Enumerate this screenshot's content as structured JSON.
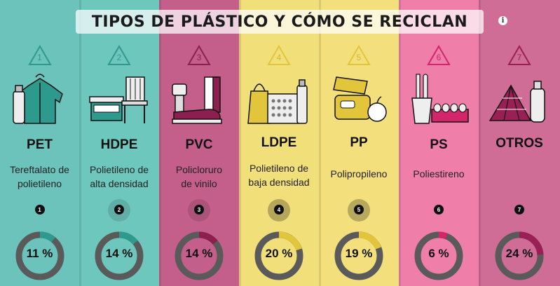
{
  "title": "TIPOS DE PLÁSTICO Y CÓMO SE RECICLAN",
  "info_icon": "info-icon",
  "ring_color": "#5a5a5a",
  "columns": [
    {
      "number": "1",
      "code": "PET",
      "name_line1": "Tereftalato de",
      "name_line2": "polietileno",
      "dot": "1",
      "percent_label": "11 %",
      "percent": 11,
      "bg": "#6cc3bb",
      "accent": "#2e9a8e",
      "icon": "jacket-bottle-icon"
    },
    {
      "number": "2",
      "code": "HDPE",
      "name_line1": "Polietileno de",
      "name_line2": "alta densidad",
      "dot": "2",
      "percent_label": "14 %",
      "percent": 14,
      "bg": "#6ec7bd",
      "accent": "#2e9a8e",
      "icon": "chair-table-icon"
    },
    {
      "number": "3",
      "code": "PVC",
      "name_line1": "Policloruro",
      "name_line2": "de vinilo",
      "dot": "3",
      "percent_label": "14 %",
      "percent": 14,
      "bg": "#c45f8b",
      "accent": "#8c1f50",
      "icon": "pipe-shoe-icon"
    },
    {
      "number": "4",
      "code": "LDPE",
      "name_line1": "Polietileno de",
      "name_line2": "baja densidad",
      "dot": "4",
      "percent_label": "20 %",
      "percent": 20,
      "bg": "#f1df7a",
      "accent": "#e2c53a",
      "icon": "bag-container-icon"
    },
    {
      "number": "5",
      "code": "PP",
      "name_line1": "Polipropileno",
      "name_line2": "",
      "dot": "5",
      "percent_label": "19 %",
      "percent": 19,
      "bg": "#f3e07d",
      "accent": "#e2c53a",
      "icon": "lunchbox-icon"
    },
    {
      "number": "6",
      "code": "PS",
      "name_line1": "Poliestireno",
      "name_line2": "",
      "dot": "6",
      "percent_label": "6 %",
      "percent": 6,
      "bg": "#ef7fa9",
      "accent": "#d4246a",
      "icon": "cutlery-eggcarton-icon"
    },
    {
      "number": "7",
      "code": "OTROS",
      "name_line1": "",
      "name_line2": "",
      "dot": "7",
      "percent_label": "24 %",
      "percent": 24,
      "bg": "#cf6d97",
      "accent": "#9a1f55",
      "icon": "tent-bottle-icon"
    }
  ]
}
